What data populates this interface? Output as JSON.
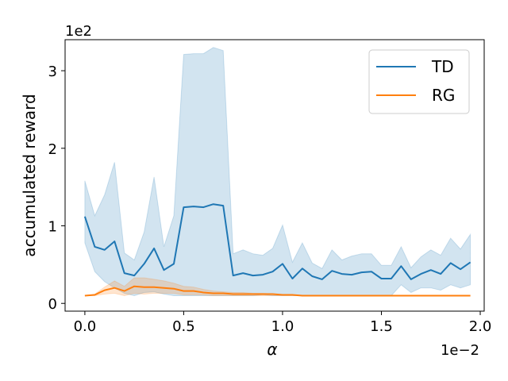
{
  "chart_data": {
    "type": "line",
    "xlabel": "α",
    "ylabel": "accumulated reward",
    "x_multiplier_label": "1e−2",
    "y_multiplier_label": "1e2",
    "xlim": [
      -0.1,
      2.02
    ],
    "ylim": [
      -0.1,
      3.4
    ],
    "x_ticks": [
      0.0,
      0.5,
      1.0,
      1.5,
      2.0
    ],
    "x_tick_labels": [
      "0.0",
      "0.5",
      "1.0",
      "1.5",
      "2.0"
    ],
    "y_ticks": [
      0,
      1,
      2,
      3
    ],
    "y_tick_labels": [
      "0",
      "1",
      "2",
      "3"
    ],
    "grid": false,
    "legend_position": "top-right",
    "x": [
      0.0,
      0.05,
      0.1,
      0.15,
      0.2,
      0.25,
      0.3,
      0.35,
      0.4,
      0.45,
      0.5,
      0.55,
      0.6,
      0.65,
      0.7,
      0.75,
      0.8,
      0.85,
      0.9,
      0.95,
      1.0,
      1.05,
      1.1,
      1.15,
      1.2,
      1.25,
      1.3,
      1.35,
      1.4,
      1.45,
      1.5,
      1.55,
      1.6,
      1.65,
      1.7,
      1.75,
      1.8,
      1.85,
      1.9,
      1.95
    ],
    "series": [
      {
        "name": "TD",
        "color": "#1f77b4",
        "values": [
          1.12,
          0.73,
          0.69,
          0.8,
          0.39,
          0.36,
          0.51,
          0.71,
          0.43,
          0.51,
          1.24,
          1.25,
          1.24,
          1.28,
          1.26,
          0.36,
          0.39,
          0.36,
          0.37,
          0.41,
          0.51,
          0.32,
          0.45,
          0.35,
          0.31,
          0.42,
          0.38,
          0.37,
          0.4,
          0.41,
          0.32,
          0.32,
          0.48,
          0.31,
          0.38,
          0.43,
          0.38,
          0.52,
          0.44,
          0.53
        ],
        "upper": [
          1.58,
          1.13,
          1.4,
          1.82,
          0.65,
          0.56,
          0.92,
          1.63,
          0.73,
          1.13,
          3.21,
          3.22,
          3.22,
          3.3,
          3.26,
          0.64,
          0.69,
          0.64,
          0.62,
          0.71,
          1.01,
          0.53,
          0.78,
          0.52,
          0.45,
          0.69,
          0.56,
          0.61,
          0.64,
          0.64,
          0.49,
          0.49,
          0.73,
          0.46,
          0.6,
          0.69,
          0.62,
          0.84,
          0.7,
          0.89
        ],
        "lower": [
          0.78,
          0.41,
          0.28,
          0.2,
          0.13,
          0.1,
          0.14,
          0.15,
          0.12,
          0.1,
          0.1,
          0.1,
          0.1,
          0.1,
          0.1,
          0.1,
          0.1,
          0.1,
          0.11,
          0.1,
          0.1,
          0.1,
          0.1,
          0.1,
          0.1,
          0.1,
          0.1,
          0.1,
          0.1,
          0.1,
          0.1,
          0.1,
          0.24,
          0.14,
          0.2,
          0.2,
          0.17,
          0.24,
          0.2,
          0.24
        ]
      },
      {
        "name": "RG",
        "color": "#ff7f0e",
        "values": [
          0.1,
          0.11,
          0.17,
          0.2,
          0.16,
          0.22,
          0.21,
          0.21,
          0.2,
          0.19,
          0.16,
          0.16,
          0.14,
          0.13,
          0.13,
          0.12,
          0.12,
          0.12,
          0.12,
          0.12,
          0.11,
          0.11,
          0.1,
          0.1,
          0.1,
          0.1,
          0.1,
          0.1,
          0.1,
          0.1,
          0.1,
          0.1,
          0.1,
          0.1,
          0.1,
          0.1,
          0.1,
          0.1,
          0.1,
          0.1
        ],
        "upper": [
          0.1,
          0.12,
          0.21,
          0.29,
          0.22,
          0.33,
          0.33,
          0.31,
          0.29,
          0.26,
          0.22,
          0.21,
          0.18,
          0.16,
          0.15,
          0.14,
          0.14,
          0.13,
          0.13,
          0.12,
          0.11,
          0.11,
          0.1,
          0.1,
          0.1,
          0.1,
          0.1,
          0.1,
          0.1,
          0.1,
          0.1,
          0.1,
          0.1,
          0.1,
          0.1,
          0.1,
          0.1,
          0.1,
          0.1,
          0.1
        ],
        "lower": [
          0.1,
          0.1,
          0.12,
          0.13,
          0.1,
          0.13,
          0.12,
          0.13,
          0.13,
          0.13,
          0.11,
          0.11,
          0.11,
          0.1,
          0.1,
          0.1,
          0.1,
          0.1,
          0.1,
          0.1,
          0.1,
          0.1,
          0.1,
          0.1,
          0.1,
          0.1,
          0.1,
          0.1,
          0.1,
          0.1,
          0.1,
          0.1,
          0.1,
          0.1,
          0.1,
          0.1,
          0.1,
          0.1,
          0.1,
          0.1
        ]
      }
    ]
  }
}
